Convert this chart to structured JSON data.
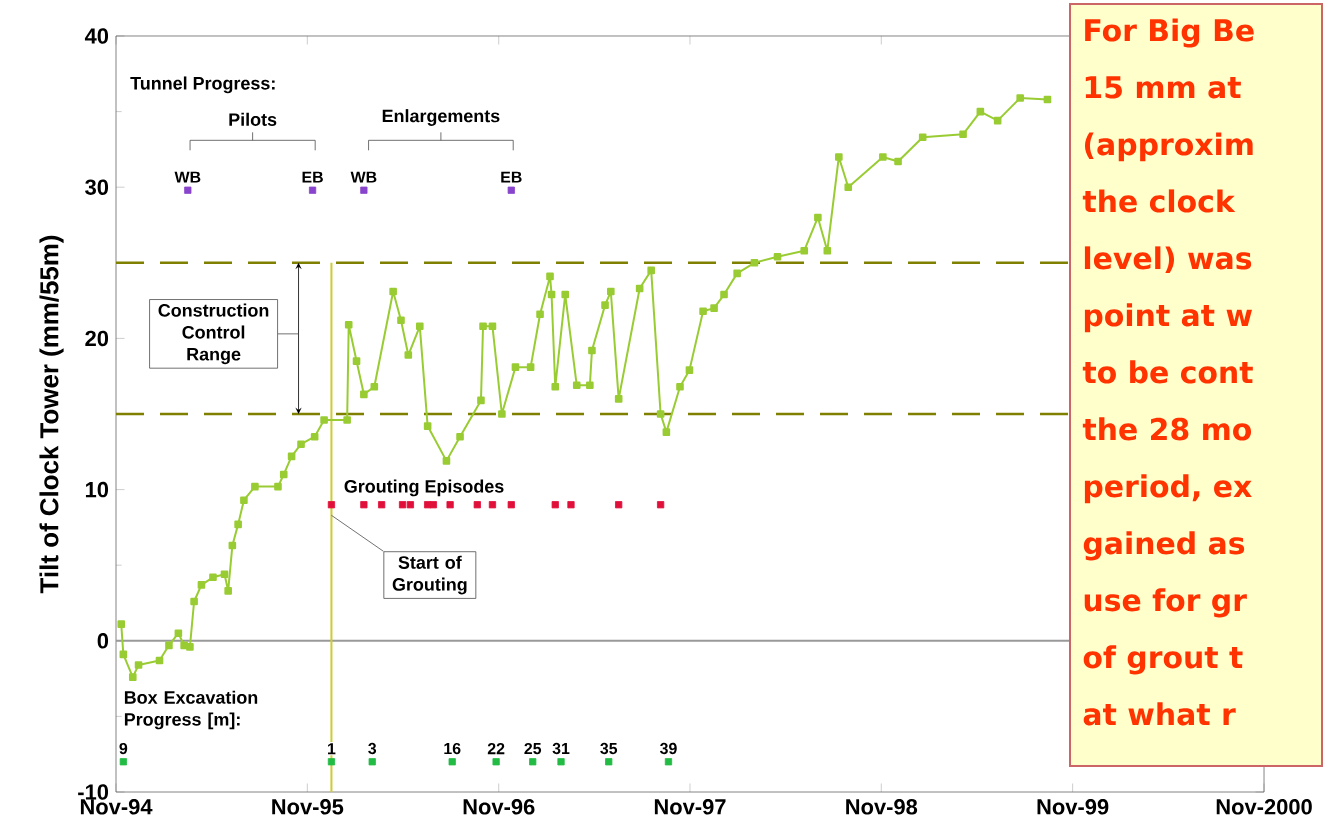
{
  "chart_data": {
    "type": "line",
    "ylabel": "Tilt of Clock Tower (mm/55m)",
    "xlim": [
      "1994-11-01",
      "2000-11-01"
    ],
    "xticks": [
      {
        "value": "1994-11-01",
        "label": "Nov-94"
      },
      {
        "value": "1995-11-01",
        "label": "Nov-95"
      },
      {
        "value": "1996-11-01",
        "label": "Nov-96"
      },
      {
        "value": "1997-11-01",
        "label": "Nov-97"
      },
      {
        "value": "1998-11-01",
        "label": "Nov-98"
      },
      {
        "value": "1999-11-01",
        "label": "Nov-99"
      },
      {
        "value": "2000-11-01",
        "label": "Nov-2000"
      }
    ],
    "ylim": [
      -10,
      40
    ],
    "yticks": [
      -10,
      0,
      10,
      20,
      30,
      40
    ],
    "marker": "square",
    "series": [
      {
        "color": "#99cc33",
        "x": [
          "1994-11-11",
          "1994-11-15",
          "1994-12-03",
          "1994-12-14",
          "1995-01-23",
          "1995-02-10",
          "1995-02-28",
          "1995-03-11",
          "1995-03-22",
          "1995-03-30",
          "1995-04-13",
          "1995-05-05",
          "1995-05-27",
          "1995-06-03",
          "1995-06-11",
          "1995-06-22",
          "1995-07-03",
          "1995-07-24",
          "1995-09-06",
          "1995-09-17",
          "1995-10-02",
          "1995-10-20",
          "1995-11-15",
          "1995-12-03",
          "1996-01-16",
          "1996-01-19",
          "1996-02-03",
          "1996-02-17",
          "1996-03-08",
          "1996-04-13",
          "1996-04-28",
          "1996-05-12",
          "1996-06-03",
          "1996-06-18",
          "1996-07-24",
          "1996-08-19",
          "1996-09-28",
          "1996-10-02",
          "1996-10-20",
          "1996-11-07",
          "1996-12-03",
          "1997-01-01",
          "1997-01-19",
          "1997-02-07",
          "1997-02-10",
          "1997-02-17",
          "1997-03-08",
          "1997-03-30",
          "1997-04-24",
          "1997-04-28",
          "1997-05-23",
          "1997-06-03",
          "1997-06-18",
          "1997-07-28",
          "1997-08-19",
          "1997-09-06",
          "1997-09-17",
          "1997-10-13",
          "1997-10-31",
          "1997-11-26",
          "1997-12-17",
          "1998-01-05",
          "1998-01-30",
          "1998-03-04",
          "1998-04-17",
          "1998-06-07",
          "1998-07-03",
          "1998-07-21",
          "1998-08-12",
          "1998-08-30",
          "1998-11-04",
          "1998-12-03",
          "1999-01-19",
          "1999-04-06",
          "1999-05-09",
          "1999-06-11",
          "1999-07-24",
          "1999-09-14"
        ],
        "values": [
          1.1,
          -0.9,
          -2.4,
          -1.6,
          -1.3,
          -0.3,
          0.5,
          -0.3,
          -0.4,
          2.6,
          3.7,
          4.2,
          4.4,
          3.3,
          6.3,
          7.7,
          9.3,
          10.2,
          10.2,
          11,
          12.2,
          13,
          13.5,
          14.6,
          14.6,
          20.9,
          18.5,
          16.3,
          16.8,
          23.1,
          21.2,
          18.9,
          20.8,
          14.2,
          11.9,
          13.5,
          15.9,
          20.8,
          20.8,
          15,
          18.1,
          18.1,
          21.6,
          24.1,
          22.9,
          16.8,
          22.9,
          16.9,
          16.9,
          19.2,
          22.2,
          23.1,
          16,
          23.3,
          24.5,
          15,
          13.8,
          16.8,
          17.9,
          21.8,
          22,
          22.9,
          24.3,
          25,
          25.4,
          25.8,
          28,
          25.8,
          32,
          30,
          32,
          31.7,
          33.3,
          33.5,
          35,
          34.4,
          35.9,
          35.8
        ]
      },
      {
        "type": "scatter",
        "name": "Grouting Episodes",
        "color": "#e0103a",
        "x": [
          "1995-12-17",
          "1996-02-17",
          "1996-03-22",
          "1996-05-01",
          "1996-05-16",
          "1996-06-18",
          "1996-06-29",
          "1996-07-31",
          "1996-09-21",
          "1996-10-20",
          "1996-11-25",
          "1997-02-17",
          "1997-03-19",
          "1997-06-18",
          "1997-09-06"
        ],
        "values": [
          9,
          9,
          9,
          9,
          9,
          9,
          9,
          9,
          9,
          9,
          9,
          9,
          9,
          9,
          9
        ]
      },
      {
        "type": "scatter",
        "name": "Box Excavation Progress [m]:",
        "color": "#22bb44",
        "x": [
          "1994-11-15",
          "1995-12-17",
          "1996-03-04",
          "1996-08-04",
          "1996-10-27",
          "1997-01-05",
          "1997-02-28",
          "1997-05-30",
          "1997-09-21"
        ],
        "values": [
          -8,
          -8,
          -8,
          -8,
          -8,
          -8,
          -8,
          -8,
          -8
        ]
      },
      {
        "type": "scatter",
        "color": "#8844cc",
        "x": [
          "1995-03-18",
          "1995-11-11",
          "1996-02-17",
          "1996-11-25"
        ],
        "values": [
          29.8,
          29.8,
          29.8,
          29.8
        ]
      }
    ],
    "ref_lines": [
      {
        "axis": "y",
        "value": 0,
        "color": "#999999"
      },
      {
        "axis": "y",
        "value": 15,
        "color": "#808000",
        "line_style": "dashed"
      },
      {
        "axis": "y",
        "value": 25,
        "color": "#808000",
        "line_style": "dashed"
      },
      {
        "axis": "x",
        "value": "1995-12-17",
        "color": "#cccc33"
      }
    ],
    "annotations": [
      "Tunnel Progress:",
      "Pilots",
      "Enlargements",
      "Construction Control Range",
      {
        "text": "Start of Grouting",
        "x": "1995-12-17",
        "y": 8.3
      },
      {
        "text": "WB",
        "x": "1995-03-18",
        "y": 29.8
      },
      {
        "text": "EB",
        "x": "1995-11-11",
        "y": 29.8
      },
      {
        "text": "WB",
        "x": "1996-02-17",
        "y": 29.8
      },
      {
        "text": "EB",
        "x": "1996-11-25",
        "y": 29.8
      },
      {
        "text": "9",
        "x": "1994-11-15",
        "y": -8
      },
      {
        "text": "1",
        "x": "1995-12-17",
        "y": -8
      },
      {
        "text": "3",
        "x": "1996-03-04",
        "y": -8
      },
      {
        "text": "16",
        "x": "1996-08-04",
        "y": -8
      },
      {
        "text": "22",
        "x": "1996-10-27",
        "y": -8
      },
      {
        "text": "25",
        "x": "1997-01-05",
        "y": -8
      },
      {
        "text": "31",
        "x": "1997-02-28",
        "y": -8
      },
      {
        "text": "35",
        "x": "1997-05-30",
        "y": -8
      },
      {
        "text": "39",
        "x": "1997-09-21",
        "y": -8
      },
      "For Big Be",
      "15 mm at",
      "(approxim",
      "the clock",
      "level) was",
      "point at w",
      "to be cont",
      "the 28 mo",
      "period, ex",
      "gained as",
      "use for gr",
      "of grout t",
      "at what r"
    ]
  }
}
